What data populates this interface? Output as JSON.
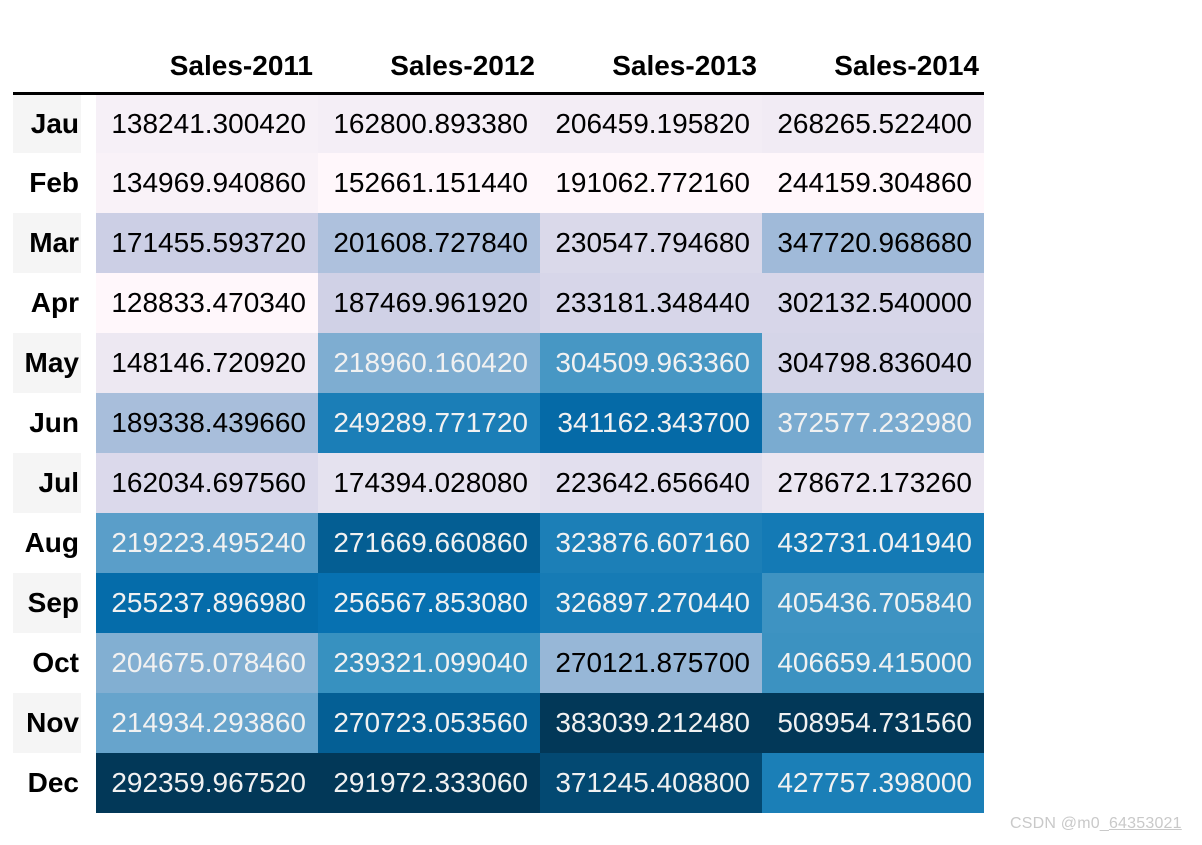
{
  "page": {
    "background": "#ffffff"
  },
  "watermark": {
    "prefix": "CSDN @m0_",
    "id": "64353021",
    "color": "#c9c9c9"
  },
  "table": {
    "blank_header": "",
    "columns": [
      "Sales-2011",
      "Sales-2012",
      "Sales-2013",
      "Sales-2014"
    ],
    "row_labels": [
      "Jau",
      "Feb",
      "Mar",
      "Apr",
      "May",
      "Jun",
      "Jul",
      "Aug",
      "Sep",
      "Oct",
      "Nov",
      "Dec"
    ],
    "cell_text": [
      [
        "138241.300420",
        "162800.893380",
        "206459.195820",
        "268265.522400"
      ],
      [
        "134969.940860",
        "152661.151440",
        "191062.772160",
        "244159.304860"
      ],
      [
        "171455.593720",
        "201608.727840",
        "230547.794680",
        "347720.968680"
      ],
      [
        "128833.470340",
        "187469.961920",
        "233181.348440",
        "302132.540000"
      ],
      [
        "148146.720920",
        "218960.160420",
        "304509.963360",
        "304798.836040"
      ],
      [
        "189338.439660",
        "249289.771720",
        "341162.343700",
        "372577.232980"
      ],
      [
        "162034.697560",
        "174394.028080",
        "223642.656640",
        "278672.173260"
      ],
      [
        "219223.495240",
        "271669.660860",
        "323876.607160",
        "432731.041940"
      ],
      [
        "255237.896980",
        "256567.853080",
        "326897.270440",
        "405436.705840"
      ],
      [
        "204675.078460",
        "239321.099040",
        "270121.875700",
        "406659.415000"
      ],
      [
        "214934.293860",
        "270723.053560",
        "383039.212480",
        "508954.731560"
      ],
      [
        "292359.967520",
        "291972.333060",
        "371245.408800",
        "427757.398000"
      ]
    ],
    "style": {
      "colormap": "PuBu",
      "colormap_anchors": [
        "#fff7fb",
        "#ece7f2",
        "#d0d1e6",
        "#a6bddb",
        "#74a9cf",
        "#3690c0",
        "#0570b0",
        "#045a8d",
        "#023858"
      ],
      "gradient_axis": "column",
      "text_dark": "#000000",
      "text_light": "#f1f1f1",
      "luminance_threshold": 0.408,
      "stripe_color": "#f5f5f5",
      "header_rule_color": "#000000"
    }
  },
  "chart_data": {
    "type": "heatmap",
    "title": "",
    "xlabel": "",
    "ylabel": "",
    "columns": [
      "Sales-2011",
      "Sales-2012",
      "Sales-2013",
      "Sales-2014"
    ],
    "rows": [
      "Jau",
      "Feb",
      "Mar",
      "Apr",
      "May",
      "Jun",
      "Jul",
      "Aug",
      "Sep",
      "Oct",
      "Nov",
      "Dec"
    ],
    "values": [
      [
        138241.30042,
        162800.89338,
        206459.19582,
        268265.5224
      ],
      [
        134969.94086,
        152661.15144,
        191062.77216,
        244159.30486
      ],
      [
        171455.59372,
        201608.72784,
        230547.79468,
        347720.96868
      ],
      [
        128833.47034,
        187469.96192,
        233181.34844,
        302132.54
      ],
      [
        148146.72092,
        218960.16042,
        304509.96336,
        304798.83604
      ],
      [
        189338.43966,
        249289.77172,
        341162.3437,
        372577.23298
      ],
      [
        162034.69756,
        174394.02808,
        223642.65664,
        278672.17326
      ],
      [
        219223.49524,
        271669.66086,
        323876.60716,
        432731.04194
      ],
      [
        255237.89698,
        256567.85308,
        326897.27044,
        405436.70584
      ],
      [
        204675.07846,
        239321.09904,
        270121.8757,
        406659.415
      ],
      [
        214934.29386,
        270723.05356,
        383039.21248,
        508954.73156
      ],
      [
        292359.96752,
        291972.33306,
        371245.4088,
        427757.398
      ]
    ],
    "colormap": "PuBu",
    "normalization": "min-max per column",
    "legend": false,
    "grid": false
  }
}
